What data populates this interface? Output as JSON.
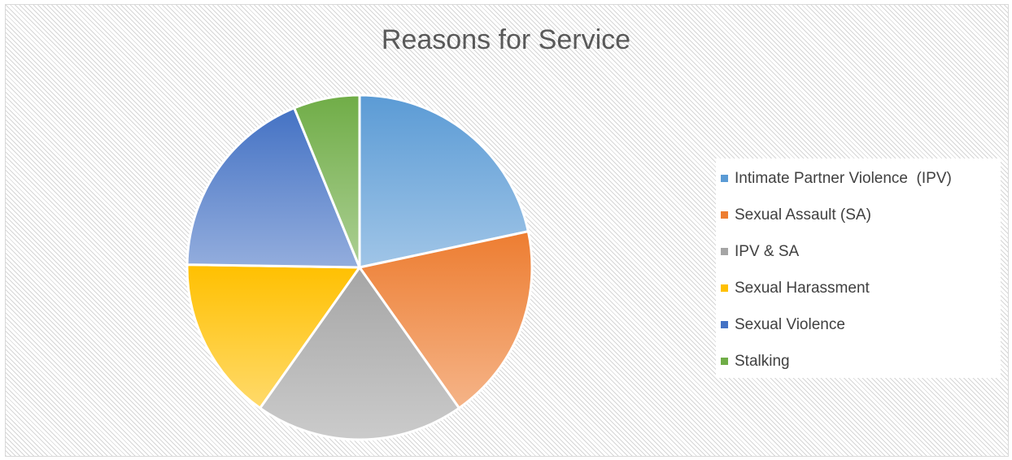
{
  "chart_data": {
    "type": "pie",
    "title": "Reasons for Service",
    "categories": [
      "Intimate Partner Violence  (IPV)",
      "Sexual Assault (SA)",
      "IPV & SA",
      "Sexual Harassment",
      "Sexual Violence",
      "Stalking"
    ],
    "values": [
      21,
      18,
      19,
      15,
      18,
      6
    ],
    "colors": [
      "#5b9bd5",
      "#ed7d31",
      "#a5a5a5",
      "#ffc000",
      "#4472c4",
      "#70ad47"
    ],
    "legend_position": "right",
    "start_angle_deg": 0,
    "direction": "clockwise"
  }
}
